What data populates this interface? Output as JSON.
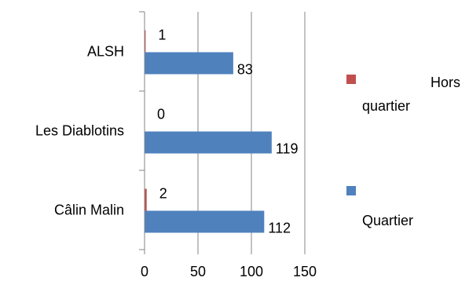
{
  "chart_data": {
    "type": "bar",
    "orientation": "horizontal",
    "categories": [
      "Câlin Malin",
      "Les Diablotins",
      "ALSH"
    ],
    "series": [
      {
        "name": "Quartier",
        "values": [
          112,
          119,
          83
        ],
        "color": "#4F81BD"
      },
      {
        "name": "Hors quartier",
        "values": [
          2,
          0,
          1
        ],
        "color": "#C0504D"
      }
    ],
    "xlim": [
      0,
      150
    ],
    "xticks": [
      "0",
      "50",
      "100",
      "150"
    ],
    "grid": true,
    "legend": "right",
    "legend_labels": {
      "hors_line1": "Hors",
      "hors_line2": "quartier",
      "quartier": "Quartier"
    },
    "data_labels": true
  }
}
